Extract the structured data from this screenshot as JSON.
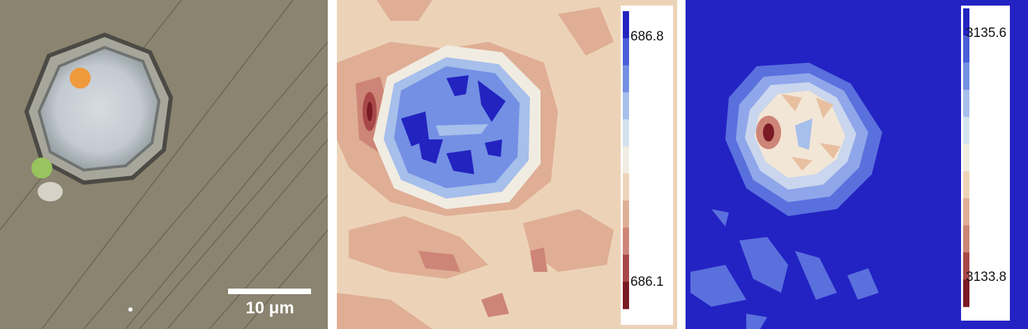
{
  "scale_bar": {
    "label": "10 μm"
  },
  "maps": [
    {
      "colorbar": {
        "max_label": 686.8,
        "min_label": 686.1
      }
    },
    {
      "colorbar": {
        "max_label": 3135.6,
        "min_label": 3133.8
      }
    }
  ]
}
